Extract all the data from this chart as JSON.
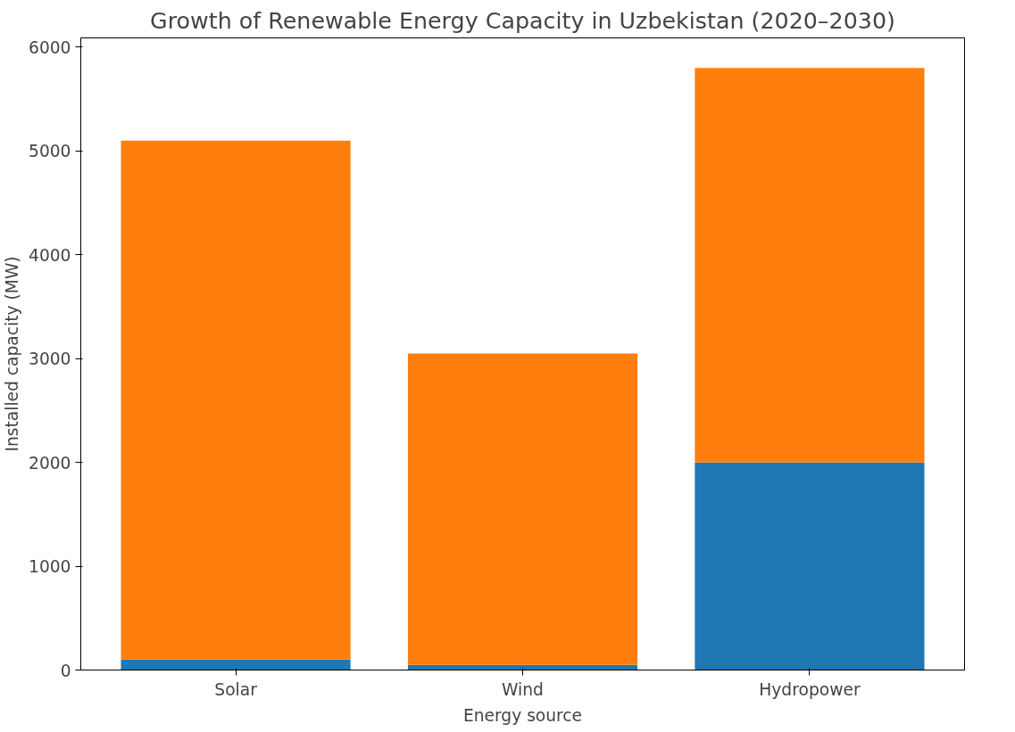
{
  "chart_data": {
    "type": "bar",
    "title": "Growth of Renewable Energy Capacity in Uzbekistan (2020–2030)",
    "xlabel": "Energy source",
    "ylabel": "Installed capacity (MW)",
    "categories": [
      "Solar",
      "Wind",
      "Hydropower"
    ],
    "stacked": true,
    "series": [
      {
        "color": "#1f77b4",
        "values": [
          100,
          50,
          2000
        ]
      },
      {
        "color": "#ff7f0e",
        "values": [
          5000,
          3000,
          3800
        ]
      }
    ],
    "ylim": [
      0,
      6090
    ],
    "yticks": [
      0,
      1000,
      2000,
      3000,
      4000,
      5000,
      6000
    ],
    "grid": false
  }
}
